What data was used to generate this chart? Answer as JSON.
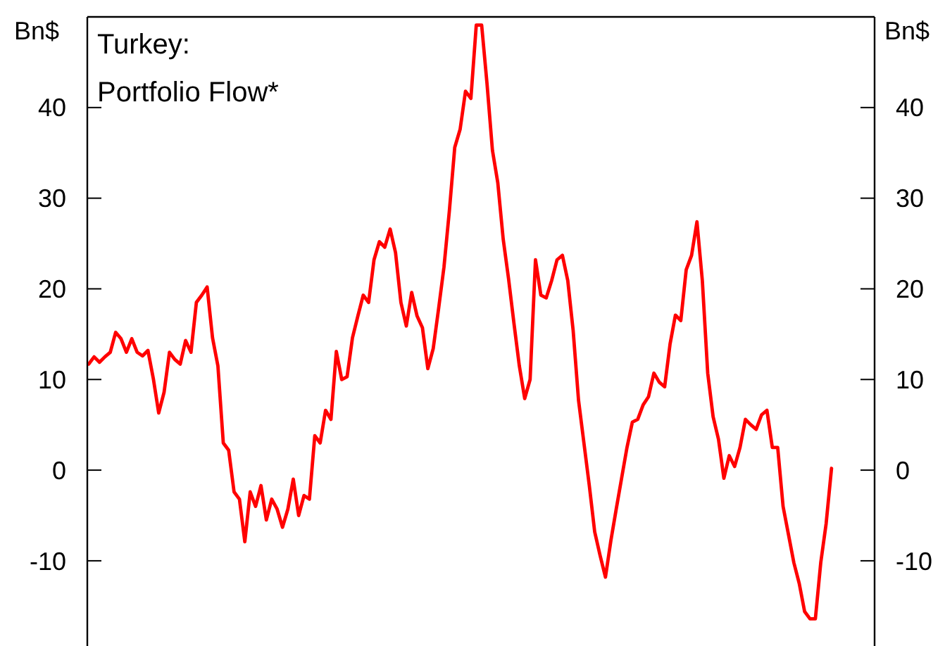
{
  "chart_data": {
    "type": "line",
    "title": "Turkey:",
    "subtitle": "Portfolio Flow*",
    "ylabel": "Bn$",
    "y2label": "Bn$",
    "categories": [
      null,
      null,
      null,
      null,
      null,
      null,
      null,
      null,
      null,
      null,
      null,
      null,
      null,
      null,
      null,
      null,
      null,
      null,
      null,
      null,
      null,
      null,
      null,
      null,
      null,
      null,
      null,
      null,
      null,
      null,
      null,
      null,
      null,
      null,
      null,
      null,
      null,
      null,
      null,
      null,
      null,
      null,
      null,
      null,
      null,
      null,
      null,
      null,
      null,
      null,
      null,
      null,
      null,
      null,
      null,
      null,
      null,
      null,
      null,
      null,
      null,
      null,
      null,
      null,
      null,
      null,
      null,
      null,
      null,
      null,
      null,
      null,
      null,
      null,
      null,
      null,
      null,
      null,
      null,
      null,
      null,
      null,
      null,
      null,
      null,
      null,
      null,
      null,
      null,
      null,
      null,
      null,
      null,
      null,
      null,
      null,
      null,
      null,
      null,
      null,
      null,
      null,
      null,
      null,
      null,
      null,
      null,
      null,
      null,
      null,
      null,
      null,
      null,
      null,
      null,
      null,
      null,
      null,
      null,
      null,
      null,
      null,
      null,
      null,
      null,
      null,
      null,
      null,
      null,
      null,
      null,
      null,
      null,
      null,
      null,
      null,
      null,
      null,
      null,
      null,
      null,
      null,
      null,
      null,
      null,
      null,
      null
    ],
    "series": [
      {
        "color": "#ff0000",
        "values": [
          11.7,
          12.5,
          11.9,
          12.5,
          13,
          15.2,
          14.5,
          13,
          14.5,
          13,
          12.6,
          13.2,
          10.1,
          6.3,
          8.6,
          13,
          12.2,
          11.7,
          14.3,
          13,
          18.5,
          19.3,
          20.2,
          14.6,
          11.5,
          3,
          2.2,
          -2.4,
          -3.2,
          -7.9,
          -2.4,
          -4,
          -1.7,
          -5.5,
          -3.2,
          -4.3,
          -6.3,
          -4.3,
          -1,
          -5,
          -2.8,
          -3.2,
          3.8,
          3,
          6.6,
          5.6,
          13.1,
          10,
          10.3,
          14.6,
          17,
          19.3,
          18.5,
          23.2,
          25.2,
          24.6,
          26.6,
          24,
          18.5,
          15.9,
          19.6,
          17,
          15.7,
          11.2,
          13.4,
          17.8,
          22.4,
          28.6,
          35.6,
          37.6,
          41.8,
          41,
          49.1,
          49.1,
          42.6,
          35.3,
          31.7,
          25.5,
          21.1,
          16.2,
          11.5,
          7.9,
          10,
          23.2,
          19.3,
          19,
          20.9,
          23.2,
          23.7,
          20.9,
          15.4,
          7.7,
          3,
          -1.7,
          -6.8,
          -9.4,
          -11.8,
          -7.8,
          -4.3,
          -0.9,
          2.5,
          5.3,
          5.6,
          7.2,
          8.1,
          10.7,
          9.7,
          9.2,
          13.9,
          17.1,
          16.5,
          22.1,
          23.7,
          27.4,
          20.9,
          10.7,
          5.9,
          3.4,
          -0.9,
          1.6,
          0.4,
          2.5,
          5.6,
          5,
          4.5,
          6.1,
          6.6,
          2.5,
          2.5,
          -4,
          -7.1,
          -10.2,
          -12.5,
          -15.6,
          -16.4,
          -16.4,
          -10.2,
          -5.9,
          0.2,
          null,
          null,
          null,
          null,
          null,
          null,
          null,
          null
        ]
      }
    ],
    "ylim": [
      -19.4,
      50
    ],
    "yticks": [
      -10,
      0,
      10,
      20,
      30,
      40
    ],
    "y2lim": [
      -19.4,
      50
    ],
    "y2ticks": [
      -10,
      0,
      10,
      20,
      30,
      40
    ]
  }
}
